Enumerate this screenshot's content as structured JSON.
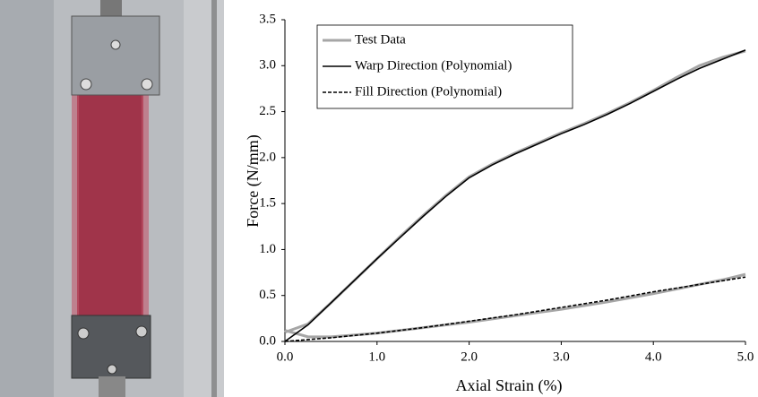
{
  "chart_data": {
    "type": "line",
    "xlabel": "Axial Strain (%)",
    "ylabel": "Force (N/mm)",
    "x": [
      0,
      0.25,
      0.5,
      0.75,
      1.0,
      1.25,
      1.5,
      1.75,
      2.0,
      2.25,
      2.5,
      2.75,
      3.0,
      3.25,
      3.5,
      3.75,
      4.0,
      4.25,
      4.5,
      4.75,
      5.0
    ],
    "series": [
      {
        "name": "Test Data",
        "color": "#a6a6a6",
        "dash": false,
        "values": [
          0.1,
          0.19,
          0.42,
          0.66,
          0.9,
          1.14,
          1.37,
          1.59,
          1.79,
          1.93,
          2.05,
          2.16,
          2.27,
          2.37,
          2.48,
          2.6,
          2.73,
          2.87,
          3.0,
          3.09,
          3.16
        ]
      },
      {
        "color": "#a6a6a6",
        "dash": false,
        "values": [
          0.12,
          0.05,
          0.05,
          0.07,
          0.09,
          0.12,
          0.15,
          0.18,
          0.21,
          0.245,
          0.28,
          0.315,
          0.35,
          0.39,
          0.43,
          0.475,
          0.52,
          0.57,
          0.62,
          0.67,
          0.73
        ]
      },
      {
        "name": "Warp Direction (Polynomial)",
        "color": "#000000",
        "dash": false,
        "values": [
          0,
          0.18,
          0.42,
          0.66,
          0.9,
          1.13,
          1.36,
          1.58,
          1.78,
          1.92,
          2.04,
          2.15,
          2.26,
          2.36,
          2.47,
          2.59,
          2.72,
          2.85,
          2.97,
          3.07,
          3.17
        ]
      },
      {
        "name": "Fill Direction (Polynomial)",
        "color": "#000000",
        "dash": true,
        "values": [
          0,
          0.02,
          0.04,
          0.065,
          0.09,
          0.12,
          0.15,
          0.185,
          0.22,
          0.255,
          0.29,
          0.33,
          0.37,
          0.41,
          0.45,
          0.495,
          0.54,
          0.58,
          0.62,
          0.66,
          0.7
        ]
      }
    ],
    "xlim": [
      0,
      5.0
    ],
    "xticks": [
      {
        "value": 0,
        "label": "0.0"
      },
      {
        "value": 1,
        "label": "1.0"
      },
      {
        "value": 2,
        "label": "2.0"
      },
      {
        "value": 3,
        "label": "3.0"
      },
      {
        "value": 4,
        "label": "4.0"
      },
      {
        "value": 5,
        "label": "5.0"
      }
    ],
    "ylim": [
      0,
      3.5
    ],
    "yticks": [
      {
        "value": 0,
        "label": "0.0"
      },
      {
        "value": 0.5,
        "label": "0.5"
      },
      {
        "value": 1,
        "label": "1.0"
      },
      {
        "value": 1.5,
        "label": "1.5"
      },
      {
        "value": 2,
        "label": "2.0"
      },
      {
        "value": 2.5,
        "label": "2.5"
      },
      {
        "value": 3,
        "label": "3.0"
      },
      {
        "value": 3.5,
        "label": "3.5"
      }
    ],
    "grid": false,
    "legend": "upper-left"
  }
}
